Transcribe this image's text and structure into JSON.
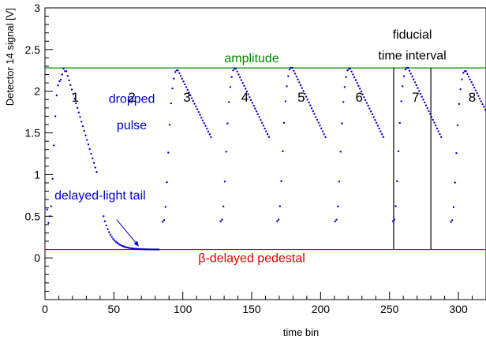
{
  "chart_data": {
    "type": "scatter",
    "title": "",
    "xlabel": "time bin",
    "ylabel": "Detector 14 signal [V]",
    "xlim": [
      0,
      320
    ],
    "ylim": [
      -0.5,
      3
    ],
    "x_ticks": [
      0,
      50,
      100,
      150,
      200,
      250,
      300
    ],
    "y_ticks": [
      0,
      0.5,
      1,
      1.5,
      2,
      2.5,
      3
    ],
    "x_tick_labels": [
      "0",
      "50",
      "100",
      "150",
      "200",
      "250",
      "300"
    ],
    "y_tick_labels": [
      "0",
      "0.5",
      "1",
      "1.5",
      "2",
      "2.5",
      "3"
    ],
    "grid": false,
    "colors": {
      "points": "#0000cc",
      "amplitude_line": "#008800",
      "pedestal_line": "#dd0000",
      "interval_lines": "#000000",
      "annotation_blue": "#0000cc"
    },
    "reference_lines": {
      "amplitude": {
        "label": "amplitude",
        "y": 2.28
      },
      "pedestal": {
        "label": "β-delayed pedestal",
        "y": 0.1
      },
      "fiducial_interval": {
        "label_line1": "fiducial",
        "label_line2": "time interval",
        "x_start": 253,
        "x_end": 280,
        "y_top": 2.28
      }
    },
    "pulse_labels": [
      {
        "text": "1",
        "x": 22,
        "y": 1.95
      },
      {
        "text": "2",
        "x": 63,
        "y": 1.95
      },
      {
        "text": "3",
        "x": 103,
        "y": 1.95
      },
      {
        "text": "4",
        "x": 145,
        "y": 1.95
      },
      {
        "text": "5",
        "x": 186,
        "y": 1.95
      },
      {
        "text": "6",
        "x": 228,
        "y": 1.95
      },
      {
        "text": "7",
        "x": 269,
        "y": 1.95
      },
      {
        "text": "8",
        "x": 310,
        "y": 1.95
      }
    ],
    "annotations": {
      "dropped_pulse_line1": "dropped",
      "dropped_pulse_line2": "pulse",
      "delayed_tail": "delayed-light tail",
      "delayed_tail_arrow_from": [
        52,
        0.46
      ],
      "delayed_tail_arrow_to": [
        68,
        0.14
      ]
    },
    "pulses": [
      {
        "onset": 2.5,
        "peak": 2.27,
        "drop": 0.0
      },
      {
        "onset": 85.5,
        "peak": 2.25,
        "drop": 0.0
      },
      {
        "onset": 127.5,
        "peak": 2.27,
        "drop": 0.0
      },
      {
        "onset": 168.5,
        "peak": 2.28,
        "drop": 0.0
      },
      {
        "onset": 210.5,
        "peak": 2.27,
        "drop": 0.0
      },
      {
        "onset": 252.5,
        "peak": 2.28,
        "drop": 0.0
      },
      {
        "onset": 294.5,
        "peak": 2.24,
        "drop": 0.0
      }
    ],
    "tail": {
      "start": 42,
      "end": 82,
      "start_value": 0.5,
      "end_value": 0.1
    }
  }
}
